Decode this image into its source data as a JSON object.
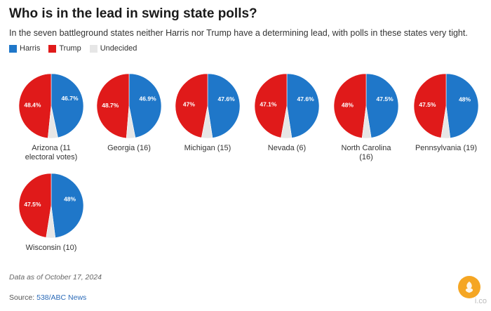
{
  "title": "Who is in the lead in swing state polls?",
  "subtitle": "In the seven battleground states neither Harris nor Trump have a determining lead, with polls in these states very tight.",
  "legend": [
    {
      "label": "Harris",
      "color": "#1f77c9"
    },
    {
      "label": "Trump",
      "color": "#e01a1a"
    },
    {
      "label": "Undecided",
      "color": "#e6e6e6"
    }
  ],
  "chart_data": {
    "type": "pie",
    "series_names": [
      "Harris",
      "Trump",
      "Undecided"
    ],
    "colors": {
      "Harris": "#1f77c9",
      "Trump": "#e01a1a",
      "Undecided": "#e6e6e6"
    },
    "pies": [
      {
        "label": "Arizona (11 electoral votes)",
        "label_lines": [
          "Arizona (11",
          "electoral votes)"
        ],
        "harris": 46.7,
        "trump": 48.4,
        "harris_label": "46.7%",
        "trump_label": "48.4%"
      },
      {
        "label": "Georgia (16)",
        "label_lines": [
          "Georgia (16)"
        ],
        "harris": 46.9,
        "trump": 48.7,
        "harris_label": "46.9%",
        "trump_label": "48.7%"
      },
      {
        "label": "Michigan (15)",
        "label_lines": [
          "Michigan (15)"
        ],
        "harris": 47.6,
        "trump": 47,
        "harris_label": "47.6%",
        "trump_label": "47%"
      },
      {
        "label": "Nevada (6)",
        "label_lines": [
          "Nevada (6)"
        ],
        "harris": 47.6,
        "trump": 47.1,
        "harris_label": "47.6%",
        "trump_label": "47.1%"
      },
      {
        "label": "North Carolina (16)",
        "label_lines": [
          "North Carolina",
          "(16)"
        ],
        "harris": 47.5,
        "trump": 48,
        "harris_label": "47.5%",
        "trump_label": "48%"
      },
      {
        "label": "Pennsylvania (19)",
        "label_lines": [
          "Pennsylvania (19)"
        ],
        "harris": 48,
        "trump": 47.5,
        "harris_label": "48%",
        "trump_label": "47.5%"
      },
      {
        "label": "Wisconsin (10)",
        "label_lines": [
          "Wisconsin (10)"
        ],
        "harris": 48,
        "trump": 47.5,
        "harris_label": "48%",
        "trump_label": "47.5%"
      }
    ]
  },
  "footer": {
    "note": "Data as of October 17, 2024",
    "source_prefix": "Source: ",
    "source_name": "538/ABC News",
    "watermark": "i.co"
  }
}
